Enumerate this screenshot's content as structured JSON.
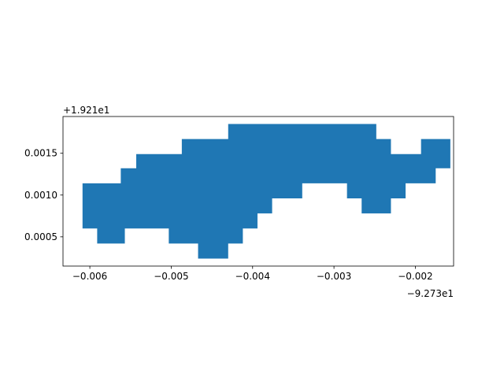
{
  "chart_data": {
    "type": "area",
    "title": "",
    "xlabel": "",
    "ylabel": "",
    "x_offset_label": "−9.273e1",
    "y_offset_label": "+1.921e1",
    "xlim": [
      -0.00633,
      -0.00153
    ],
    "ylim": [
      0.00015,
      0.00194
    ],
    "x_ticks": [
      {
        "value": -0.006,
        "label": "−0.006"
      },
      {
        "value": -0.005,
        "label": "−0.005"
      },
      {
        "value": -0.004,
        "label": "−0.004"
      },
      {
        "value": -0.003,
        "label": "−0.003"
      },
      {
        "value": -0.002,
        "label": "−0.002"
      }
    ],
    "y_ticks": [
      {
        "value": 0.0005,
        "label": "0.0005"
      },
      {
        "value": 0.001,
        "label": "0.0010"
      },
      {
        "value": 0.0015,
        "label": "0.0015"
      }
    ],
    "fill_color": "#1f77b4",
    "polygon": [
      [
        -0.00609,
        0.00114
      ],
      [
        -0.00562,
        0.00114
      ],
      [
        -0.00562,
        0.00132
      ],
      [
        -0.00543,
        0.00132
      ],
      [
        -0.00543,
        0.00149
      ],
      [
        -0.00487,
        0.00149
      ],
      [
        -0.00487,
        0.00167
      ],
      [
        -0.0043,
        0.00167
      ],
      [
        -0.0043,
        0.00185
      ],
      [
        -0.00248,
        0.00185
      ],
      [
        -0.00248,
        0.00167
      ],
      [
        -0.0023,
        0.00167
      ],
      [
        -0.0023,
        0.00149
      ],
      [
        -0.00193,
        0.00149
      ],
      [
        -0.00193,
        0.00167
      ],
      [
        -0.00157,
        0.00167
      ],
      [
        -0.00157,
        0.00132
      ],
      [
        -0.00175,
        0.00132
      ],
      [
        -0.00175,
        0.00114
      ],
      [
        -0.00212,
        0.00114
      ],
      [
        -0.00212,
        0.00096
      ],
      [
        -0.0023,
        0.00096
      ],
      [
        -0.0023,
        0.00078
      ],
      [
        -0.00266,
        0.00078
      ],
      [
        -0.00266,
        0.00096
      ],
      [
        -0.00284,
        0.00096
      ],
      [
        -0.00284,
        0.00114
      ],
      [
        -0.00339,
        0.00114
      ],
      [
        -0.00339,
        0.00096
      ],
      [
        -0.00376,
        0.00096
      ],
      [
        -0.00376,
        0.00078
      ],
      [
        -0.00394,
        0.00078
      ],
      [
        -0.00394,
        0.0006
      ],
      [
        -0.00412,
        0.0006
      ],
      [
        -0.00412,
        0.00042
      ],
      [
        -0.0043,
        0.00042
      ],
      [
        -0.0043,
        0.00024
      ],
      [
        -0.00467,
        0.00024
      ],
      [
        -0.00467,
        0.00042
      ],
      [
        -0.00503,
        0.00042
      ],
      [
        -0.00503,
        0.0006
      ],
      [
        -0.00557,
        0.0006
      ],
      [
        -0.00557,
        0.00042
      ],
      [
        -0.00591,
        0.00042
      ],
      [
        -0.00591,
        0.0006
      ],
      [
        -0.00609,
        0.0006
      ]
    ]
  }
}
